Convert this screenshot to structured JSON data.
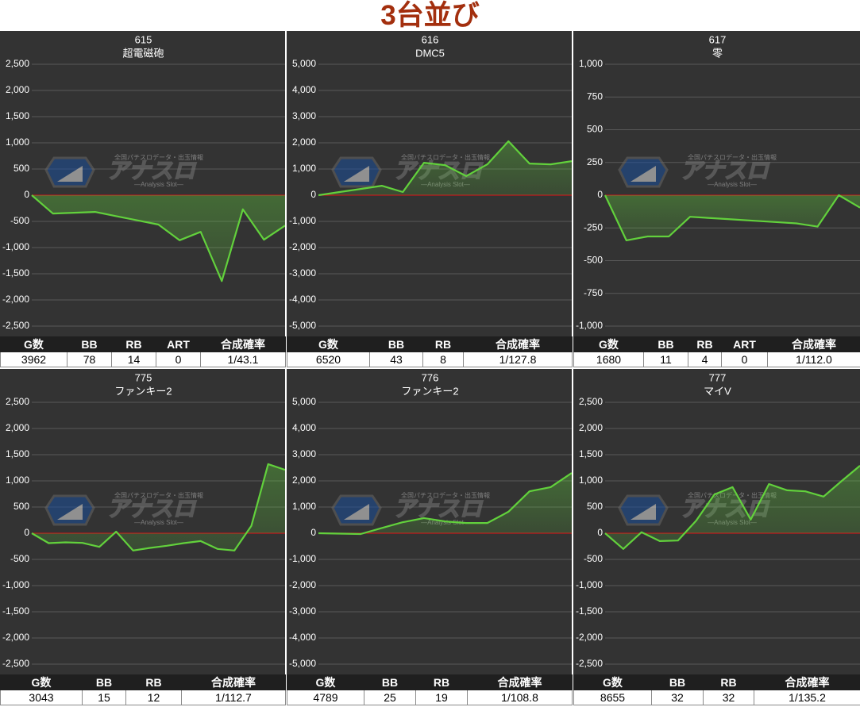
{
  "title": "3台並び",
  "watermark": {
    "tagline": "全国パチスロデータ・出玉情報",
    "logo": "アナスロ",
    "sub": "—Analysis Slot—"
  },
  "chart_data": [
    {
      "type": "line",
      "title": "615",
      "subtitle": "超電磁砲",
      "color": "#62d13c",
      "grid": true,
      "values": [
        0,
        -350,
        -335,
        -320,
        -400,
        -480,
        -560,
        -860,
        -700,
        -1640,
        -270,
        -850,
        -580
      ],
      "ylim": [
        -2500,
        2500
      ],
      "yticks": [
        {
          "value": -2500,
          "label": "-2,500"
        },
        {
          "value": -2000,
          "label": "-2,000"
        },
        {
          "value": -1500,
          "label": "-1,500"
        },
        {
          "value": -1000,
          "label": "-1,000"
        },
        -500,
        0,
        500,
        {
          "value": 1000,
          "label": "1,000"
        },
        {
          "value": 1500,
          "label": "1,500"
        },
        {
          "value": 2000,
          "label": "2,000"
        },
        {
          "value": 2500,
          "label": "2,500"
        }
      ]
    },
    {
      "type": "line",
      "title": "616",
      "subtitle": "DMC5",
      "color": "#62d13c",
      "grid": true,
      "values": [
        0,
        120,
        240,
        360,
        120,
        1240,
        1150,
        730,
        1180,
        2060,
        1210,
        1180,
        1300
      ],
      "ylim": [
        -5000,
        5000
      ],
      "yticks": [
        {
          "value": -5000,
          "label": "-5,000"
        },
        {
          "value": -4000,
          "label": "-4,000"
        },
        {
          "value": -3000,
          "label": "-3,000"
        },
        {
          "value": -2000,
          "label": "-2,000"
        },
        {
          "value": -1000,
          "label": "-1,000"
        },
        0,
        {
          "value": 1000,
          "label": "1,000"
        },
        {
          "value": 2000,
          "label": "2,000"
        },
        {
          "value": 3000,
          "label": "3,000"
        },
        {
          "value": 4000,
          "label": "4,000"
        },
        {
          "value": 5000,
          "label": "5,000"
        }
      ]
    },
    {
      "type": "line",
      "title": "617",
      "subtitle": "零",
      "color": "#62d13c",
      "grid": true,
      "values": [
        0,
        -345,
        -315,
        -315,
        -165,
        -175,
        -185,
        -195,
        -205,
        -215,
        -240,
        0,
        -95
      ],
      "ylim": [
        -1000,
        1000
      ],
      "yticks": [
        {
          "value": -1000,
          "label": "-1,000"
        },
        -750,
        -500,
        -250,
        0,
        250,
        500,
        750,
        {
          "value": 1000,
          "label": "1,000"
        }
      ]
    },
    {
      "type": "line",
      "title": "775",
      "subtitle": "ファンキー2",
      "color": "#62d13c",
      "grid": true,
      "values": [
        0,
        -190,
        -175,
        -185,
        -260,
        30,
        -330,
        -280,
        -240,
        -190,
        -150,
        -300,
        -330,
        140,
        1320,
        1210
      ],
      "ylim": [
        -2500,
        2500
      ],
      "yticks": [
        {
          "value": -2500,
          "label": "-2,500"
        },
        {
          "value": -2000,
          "label": "-2,000"
        },
        {
          "value": -1500,
          "label": "-1,500"
        },
        {
          "value": -1000,
          "label": "-1,000"
        },
        -500,
        0,
        500,
        {
          "value": 1000,
          "label": "1,000"
        },
        {
          "value": 1500,
          "label": "1,500"
        },
        {
          "value": 2000,
          "label": "2,000"
        },
        {
          "value": 2500,
          "label": "2,500"
        }
      ]
    },
    {
      "type": "line",
      "title": "776",
      "subtitle": "ファンキー2",
      "color": "#62d13c",
      "grid": true,
      "values": [
        0,
        -15,
        -30,
        200,
        420,
        580,
        450,
        390,
        390,
        820,
        1600,
        1760,
        2300
      ],
      "ylim": [
        -5000,
        5000
      ],
      "yticks": [
        {
          "value": -5000,
          "label": "-5,000"
        },
        {
          "value": -4000,
          "label": "-4,000"
        },
        {
          "value": -3000,
          "label": "-3,000"
        },
        {
          "value": -2000,
          "label": "-2,000"
        },
        {
          "value": -1000,
          "label": "-1,000"
        },
        0,
        {
          "value": 1000,
          "label": "1,000"
        },
        {
          "value": 2000,
          "label": "2,000"
        },
        {
          "value": 3000,
          "label": "3,000"
        },
        {
          "value": 4000,
          "label": "4,000"
        },
        {
          "value": 5000,
          "label": "5,000"
        }
      ]
    },
    {
      "type": "line",
      "title": "777",
      "subtitle": "マイV",
      "color": "#62d13c",
      "grid": true,
      "values": [
        0,
        -300,
        20,
        -150,
        -140,
        240,
        740,
        880,
        260,
        940,
        820,
        800,
        700,
        1000,
        1290
      ],
      "ylim": [
        -2500,
        2500
      ],
      "yticks": [
        {
          "value": -2500,
          "label": "-2,500"
        },
        {
          "value": -2000,
          "label": "-2,000"
        },
        {
          "value": -1500,
          "label": "-1,500"
        },
        {
          "value": -1000,
          "label": "-1,000"
        },
        -500,
        0,
        500,
        {
          "value": 1000,
          "label": "1,000"
        },
        {
          "value": 1500,
          "label": "1,500"
        },
        {
          "value": 2000,
          "label": "2,000"
        },
        {
          "value": 2500,
          "label": "2,500"
        }
      ]
    }
  ],
  "tables": [
    {
      "headers": [
        "G数",
        "BB",
        "RB",
        "ART",
        "合成確率"
      ],
      "rows": [
        [
          "3962",
          "78",
          "14",
          "0",
          "1/43.1"
        ]
      ]
    },
    {
      "headers": [
        "G数",
        "BB",
        "RB",
        "合成確率"
      ],
      "rows": [
        [
          "6520",
          "43",
          "8",
          "1/127.8"
        ]
      ]
    },
    {
      "headers": [
        "G数",
        "BB",
        "RB",
        "ART",
        "合成確率"
      ],
      "rows": [
        [
          "1680",
          "11",
          "4",
          "0",
          "1/112.0"
        ]
      ]
    },
    {
      "headers": [
        "G数",
        "BB",
        "RB",
        "合成確率"
      ],
      "rows": [
        [
          "3043",
          "15",
          "12",
          "1/112.7"
        ]
      ]
    },
    {
      "headers": [
        "G数",
        "BB",
        "RB",
        "合成確率"
      ],
      "rows": [
        [
          "4789",
          "25",
          "19",
          "1/108.8"
        ]
      ]
    },
    {
      "headers": [
        "G数",
        "BB",
        "RB",
        "合成確率"
      ],
      "rows": [
        [
          "8655",
          "32",
          "32",
          "1/135.2"
        ]
      ]
    }
  ]
}
